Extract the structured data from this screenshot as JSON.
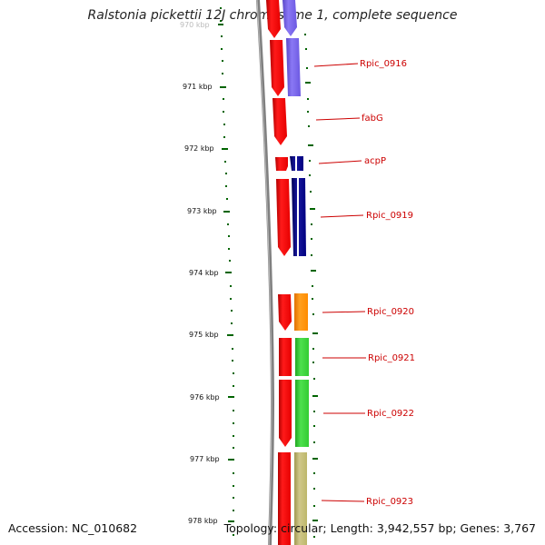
{
  "title": "Ralstonia pickettii 12J chromosome 1, complete sequence",
  "accession": "Accession: NC_010682",
  "topology": "Topology: circular; Length: 3,942,557 bp; Genes: 3,767",
  "axis": {
    "top_partial_label": "970 kbp",
    "ticks": [
      "971 kbp",
      "972 kbp",
      "973 kbp",
      "974 kbp",
      "975 kbp",
      "976 kbp",
      "977 kbp",
      "978 kbp"
    ]
  },
  "genes": [
    {
      "name": "Rpic_0916",
      "color": "#7b68ee"
    },
    {
      "name": "fabG",
      "color": "#ff0000"
    },
    {
      "name": "acpP",
      "color": "#000080"
    },
    {
      "name": "Rpic_0919",
      "color": "#000080"
    },
    {
      "name": "Rpic_0920",
      "color": "#ff8c00"
    },
    {
      "name": "Rpic_0921",
      "color": "#32cd32"
    },
    {
      "name": "Rpic_0922",
      "color": "#32cd32"
    },
    {
      "name": "Rpic_0923",
      "color": "#bdb76b"
    }
  ],
  "colors": {
    "cds": "#ff0000",
    "purple": "#7b68ee",
    "navy": "#000080",
    "orange": "#ff8c00",
    "green": "#32cd32",
    "khaki": "#bdb76b",
    "backbone": "#808080",
    "tick": "#006400"
  }
}
